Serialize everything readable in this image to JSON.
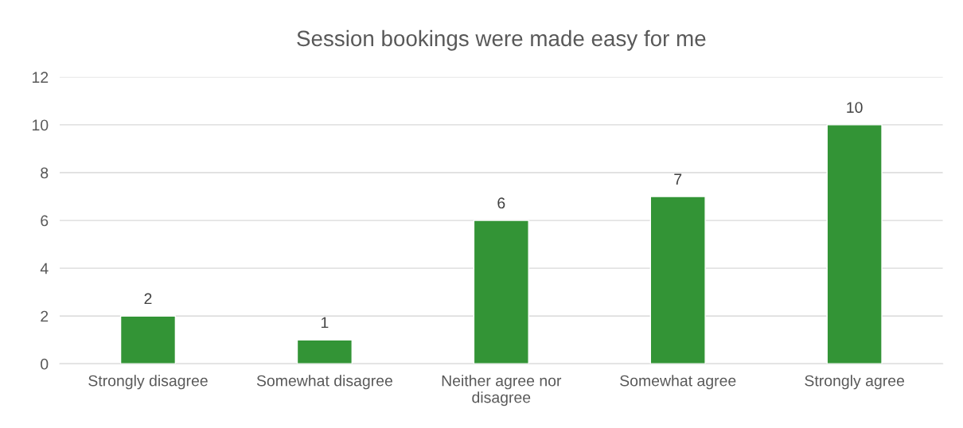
{
  "chart_data": {
    "type": "bar",
    "title": "Session bookings were made easy for me",
    "categories": [
      "Strongly disagree",
      "Somewhat disagree",
      "Neither agree nor\ndisagree",
      "Somewhat agree",
      "Strongly agree"
    ],
    "values": [
      2,
      1,
      6,
      7,
      10
    ],
    "color": "#339436",
    "ylim": [
      0,
      12
    ],
    "yticks": [
      0,
      2,
      4,
      6,
      8,
      10,
      12
    ],
    "grid": "y",
    "data_labels": true
  }
}
